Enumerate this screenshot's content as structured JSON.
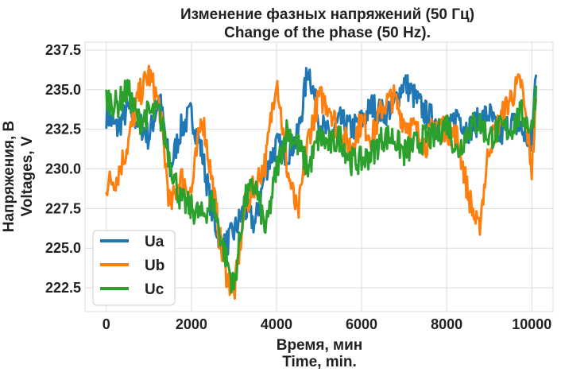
{
  "chart_data": {
    "type": "line",
    "title": "Изменение фазных напряжений (50 Гц)",
    "subtitle": "Change of the phase  (50 Hz).",
    "xlabel": "Время, мин",
    "xlabel2": "Time, min.",
    "ylabel": "Напряжения, В",
    "ylabel2": "Voltages, V",
    "xlim": [
      -500,
      10500
    ],
    "ylim": [
      221.0,
      238.0
    ],
    "xticks": [
      0,
      2000,
      4000,
      6000,
      8000,
      10000
    ],
    "xtick_labels": [
      "0",
      "2000",
      "4000",
      "6000",
      "8000",
      "10000"
    ],
    "yticks": [
      222.5,
      225.0,
      227.5,
      230.0,
      232.5,
      235.0,
      237.5
    ],
    "ytick_labels": [
      "222.5",
      "225.0",
      "227.5",
      "230.0",
      "232.5",
      "235.0",
      "237.5"
    ],
    "grid": true,
    "legend_position": "bottom-left",
    "x": [
      0,
      250,
      500,
      750,
      1000,
      1250,
      1500,
      1750,
      2000,
      2250,
      2500,
      2750,
      3000,
      3250,
      3500,
      3750,
      4000,
      4250,
      4500,
      4750,
      5000,
      5250,
      5500,
      5750,
      6000,
      6250,
      6500,
      6750,
      7000,
      7250,
      7500,
      7750,
      8000,
      8250,
      8500,
      8750,
      9000,
      9250,
      9500,
      9750,
      10000,
      10100
    ],
    "series": [
      {
        "name": "Ua",
        "color": "#1f77b4",
        "values": [
          233.5,
          232.5,
          233.8,
          233.0,
          232.0,
          234.5,
          230.0,
          232.5,
          233.5,
          231.0,
          227.0,
          225.0,
          226.0,
          227.5,
          226.5,
          230.0,
          231.5,
          231.0,
          232.0,
          236.5,
          233.0,
          232.0,
          233.0,
          232.5,
          233.0,
          234.0,
          233.5,
          234.0,
          235.5,
          234.5,
          233.5,
          233.0,
          232.0,
          233.5,
          232.5,
          233.0,
          233.5,
          232.0,
          233.0,
          232.5,
          231.5,
          236.5
        ]
      },
      {
        "name": "Ub",
        "color": "#ff7f0e",
        "values": [
          229.0,
          229.5,
          231.5,
          234.5,
          236.0,
          234.0,
          227.5,
          229.5,
          228.5,
          233.5,
          229.0,
          224.0,
          222.0,
          227.5,
          229.0,
          230.5,
          236.0,
          230.0,
          227.0,
          232.0,
          234.5,
          234.0,
          232.0,
          231.5,
          233.0,
          232.0,
          234.0,
          234.5,
          233.0,
          232.5,
          231.5,
          233.0,
          232.5,
          232.0,
          228.5,
          226.0,
          231.5,
          233.0,
          234.5,
          235.5,
          230.0,
          234.0
        ]
      },
      {
        "name": "Uc",
        "color": "#2ca02c",
        "values": [
          234.5,
          234.0,
          235.0,
          233.0,
          233.5,
          233.5,
          230.5,
          228.0,
          227.5,
          227.0,
          228.0,
          225.0,
          222.5,
          228.0,
          229.0,
          226.0,
          230.0,
          232.5,
          231.5,
          230.0,
          232.0,
          231.5,
          232.0,
          230.5,
          230.5,
          231.0,
          232.0,
          232.0,
          231.0,
          231.5,
          232.0,
          232.0,
          233.0,
          231.0,
          232.5,
          233.0,
          232.0,
          232.5,
          232.5,
          233.5,
          232.5,
          235.0
        ]
      }
    ]
  }
}
